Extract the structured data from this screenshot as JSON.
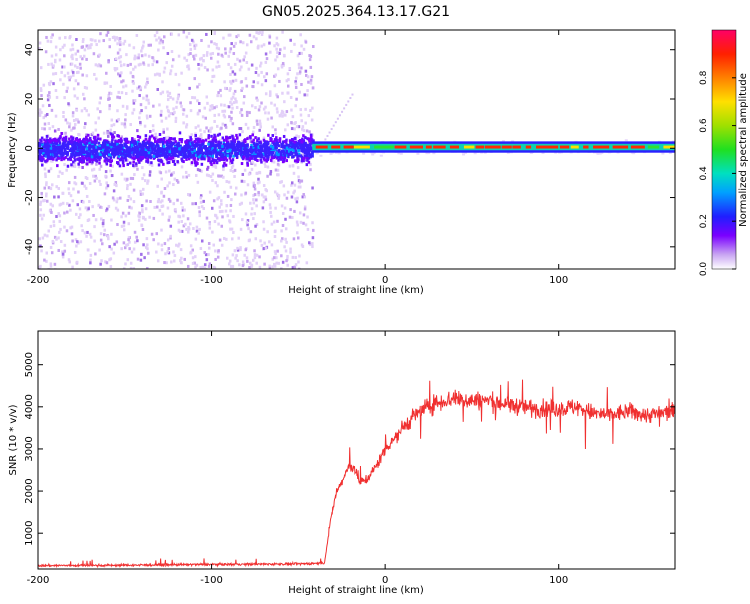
{
  "title": "GN05.2025.364.13.17.G21",
  "chart_data": [
    {
      "type": "heatmap",
      "xlabel": "Height of straight line (km)",
      "ylabel": "Frequency (Hz)",
      "xlim": [
        -200,
        167
      ],
      "ylim": [
        -49,
        48
      ],
      "xticks": [
        -200,
        -100,
        0,
        100
      ],
      "yticks": [
        -40,
        -20,
        0,
        20,
        40
      ],
      "grid": false,
      "noisy_region_x": [
        -200,
        -42
      ],
      "signal_region_x": [
        -42,
        167
      ],
      "signal_frequency_hz": 0.5,
      "colorbar": {
        "label": "Normalized spectral amplitude",
        "range": [
          0.0,
          1.0
        ],
        "ticks": [
          0.0,
          0.2,
          0.4,
          0.6,
          0.8
        ],
        "colors": [
          "#ffffff",
          "#c9a6f2",
          "#7a00ff",
          "#1f1fff",
          "#00a0ff",
          "#00e0c0",
          "#20e020",
          "#a0e000",
          "#ffe000",
          "#ff8000",
          "#ff2000",
          "#ff0066"
        ]
      }
    },
    {
      "type": "line",
      "xlabel": "Height of straight line (km)",
      "ylabel": "SNR (10 * v/v)",
      "xlim": [
        -200,
        167
      ],
      "ylim": [
        150,
        5800
      ],
      "xticks": [
        -200,
        -100,
        0,
        100
      ],
      "yticks": [
        1000,
        2000,
        3000,
        4000,
        5000
      ],
      "grid": false,
      "series": [
        {
          "color": "#f03030",
          "x": [
            -200,
            -150,
            -100,
            -50,
            -35,
            -31,
            -28,
            -25,
            -22,
            -18,
            -15,
            -10,
            -5,
            0,
            10,
            20,
            30,
            40,
            50,
            60,
            70,
            80,
            90,
            100,
            110,
            120,
            130,
            140,
            150,
            160,
            167
          ],
          "y": [
            230,
            240,
            260,
            270,
            290,
            1400,
            2000,
            2200,
            2500,
            2600,
            2200,
            2300,
            2600,
            3000,
            3500,
            3900,
            4100,
            4200,
            4150,
            4150,
            4050,
            4000,
            3950,
            3950,
            4000,
            3850,
            3800,
            3900,
            3800,
            3850,
            3900
          ]
        }
      ]
    }
  ]
}
